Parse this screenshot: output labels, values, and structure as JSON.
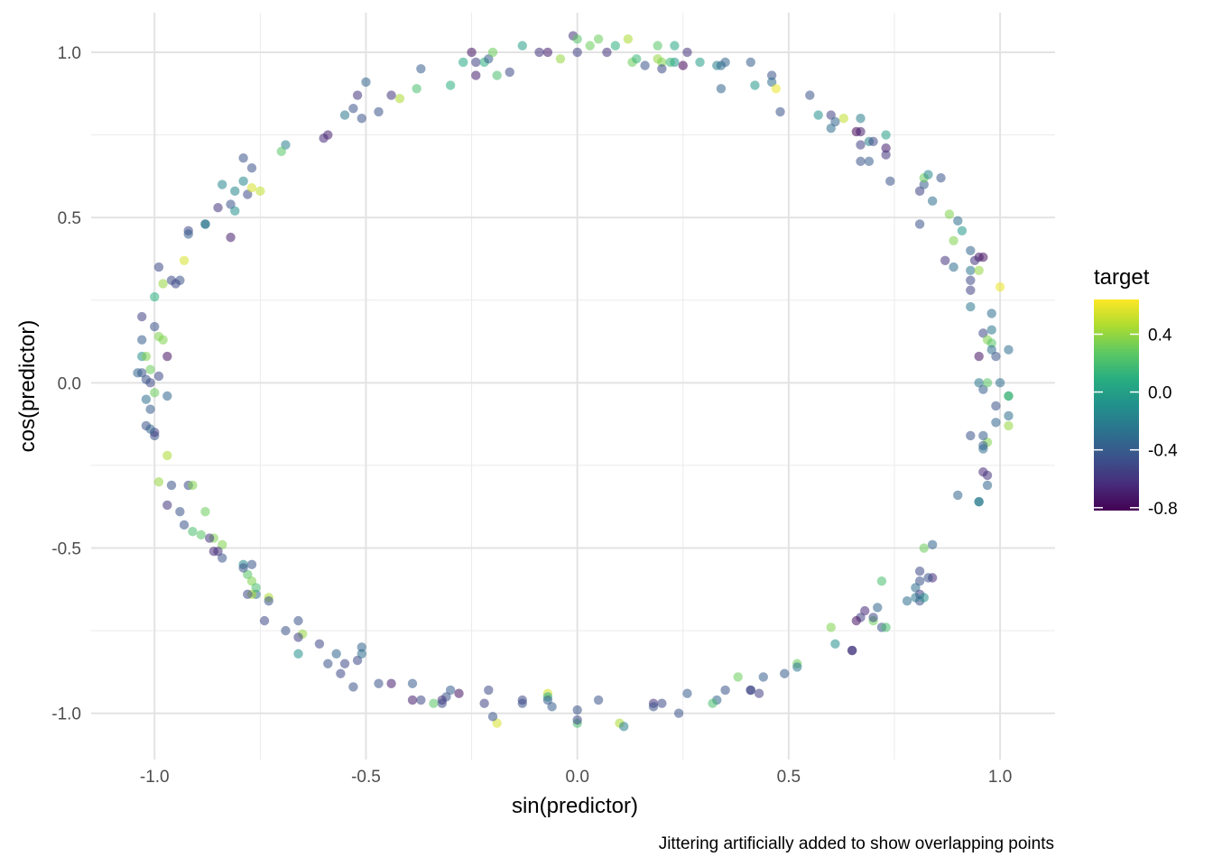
{
  "chart_data": {
    "type": "scatter",
    "xlabel": "sin(predictor)",
    "ylabel": "cos(predictor)",
    "caption": "Jittering artificially added to show overlapping points",
    "xlim": [
      -1.15,
      1.13
    ],
    "ylim": [
      -1.14,
      1.12
    ],
    "x_ticks": [
      -1.0,
      -0.5,
      0.0,
      0.5,
      1.0
    ],
    "y_ticks": [
      -1.0,
      -0.5,
      0.0,
      0.5,
      1.0
    ],
    "x_tick_labels": [
      "-1.0",
      "-0.5",
      "0.0",
      "0.5",
      "1.0"
    ],
    "y_tick_labels": [
      "-1.0",
      "-0.5",
      "0.0",
      "0.5",
      "1.0"
    ],
    "grid": true,
    "point_alpha": 0.55,
    "color_scale": "viridis",
    "legend": {
      "title": "target",
      "position": "right",
      "range": [
        -0.82,
        0.64
      ],
      "ticks": [
        0.4,
        0.0,
        -0.4,
        -0.8
      ],
      "tick_labels": [
        "0.4",
        "0.0",
        "-0.4",
        "-0.8"
      ]
    },
    "points": [
      [
        -0.25,
        1.0,
        -0.75
      ],
      [
        -0.24,
        0.97,
        -0.55
      ],
      [
        -0.22,
        0.97,
        0.1
      ],
      [
        -0.21,
        0.98,
        -0.4
      ],
      [
        -0.2,
        1.0,
        0.3
      ],
      [
        -0.19,
        0.93,
        0.2
      ],
      [
        -0.16,
        0.94,
        -0.5
      ],
      [
        -0.24,
        0.93,
        -0.7
      ],
      [
        -0.27,
        0.97,
        0.05
      ],
      [
        -0.3,
        0.9,
        0.1
      ],
      [
        -0.38,
        0.89,
        0.2
      ],
      [
        -0.42,
        0.86,
        0.45
      ],
      [
        -0.44,
        0.87,
        -0.6
      ],
      [
        -0.47,
        0.82,
        -0.45
      ],
      [
        -0.5,
        0.91,
        -0.35
      ],
      [
        -0.51,
        0.8,
        -0.45
      ],
      [
        -0.52,
        0.87,
        -0.6
      ],
      [
        -0.53,
        0.83,
        -0.45
      ],
      [
        -0.55,
        0.81,
        -0.25
      ],
      [
        -0.59,
        0.75,
        -0.7
      ],
      [
        -0.6,
        0.74,
        -0.65
      ],
      [
        -0.69,
        0.72,
        -0.2
      ],
      [
        -0.7,
        0.7,
        0.25
      ],
      [
        -0.37,
        0.95,
        -0.4
      ],
      [
        -0.13,
        1.02,
        0.0
      ],
      [
        -0.09,
        1.0,
        -0.6
      ],
      [
        -0.07,
        1.0,
        -0.7
      ],
      [
        -0.04,
        0.98,
        0.4
      ],
      [
        -0.01,
        1.05,
        -0.6
      ],
      [
        0.0,
        1.04,
        0.25
      ],
      [
        0.0,
        1.0,
        -0.55
      ],
      [
        0.03,
        1.02,
        0.3
      ],
      [
        0.05,
        1.04,
        0.3
      ],
      [
        0.07,
        1.0,
        -0.6
      ],
      [
        0.09,
        1.02,
        0.1
      ],
      [
        0.12,
        1.04,
        0.45
      ],
      [
        0.13,
        0.97,
        0.3
      ],
      [
        0.14,
        0.98,
        0.15
      ],
      [
        0.16,
        0.96,
        -0.45
      ],
      [
        0.19,
        0.98,
        0.4
      ],
      [
        0.19,
        1.02,
        0.25
      ],
      [
        0.2,
        0.97,
        0.35
      ],
      [
        0.2,
        0.95,
        -0.5
      ],
      [
        0.23,
        1.02,
        0.05
      ],
      [
        0.23,
        0.97,
        -0.05
      ],
      [
        0.22,
        0.97,
        0.15
      ],
      [
        0.25,
        0.96,
        -0.8
      ],
      [
        0.26,
        1.0,
        -0.6
      ],
      [
        0.29,
        0.97,
        0.0
      ],
      [
        0.33,
        0.96,
        -0.2
      ],
      [
        0.34,
        0.96,
        -0.3
      ],
      [
        0.34,
        0.89,
        -0.35
      ],
      [
        0.35,
        0.97,
        -0.35
      ],
      [
        0.41,
        0.97,
        -0.4
      ],
      [
        0.42,
        0.9,
        -0.05
      ],
      [
        0.46,
        0.93,
        -0.45
      ],
      [
        0.46,
        0.91,
        -0.3
      ],
      [
        0.47,
        0.89,
        0.6
      ],
      [
        0.48,
        0.82,
        -0.45
      ],
      [
        0.55,
        0.87,
        -0.45
      ],
      [
        0.57,
        0.81,
        -0.1
      ],
      [
        0.6,
        0.81,
        -0.55
      ],
      [
        0.6,
        0.77,
        -0.3
      ],
      [
        0.61,
        0.79,
        -0.35
      ],
      [
        0.63,
        0.8,
        0.5
      ],
      [
        0.66,
        0.76,
        -0.8
      ],
      [
        0.67,
        0.8,
        -0.2
      ],
      [
        0.67,
        0.76,
        -0.7
      ],
      [
        0.67,
        0.72,
        -0.55
      ],
      [
        0.67,
        0.67,
        -0.45
      ],
      [
        0.69,
        0.73,
        -0.2
      ],
      [
        0.69,
        0.67,
        -0.4
      ],
      [
        0.7,
        0.73,
        -0.5
      ],
      [
        0.73,
        0.75,
        0.0
      ],
      [
        0.73,
        0.71,
        -0.7
      ],
      [
        0.73,
        0.69,
        -0.6
      ],
      [
        0.74,
        0.61,
        -0.45
      ],
      [
        0.81,
        0.58,
        -0.55
      ],
      [
        0.82,
        0.6,
        -0.4
      ],
      [
        0.82,
        0.62,
        0.3
      ],
      [
        0.83,
        0.63,
        -0.15
      ],
      [
        0.84,
        0.55,
        -0.3
      ],
      [
        0.81,
        0.48,
        -0.45
      ],
      [
        0.86,
        0.62,
        -0.45
      ],
      [
        0.88,
        0.51,
        0.35
      ],
      [
        0.89,
        0.43,
        0.35
      ],
      [
        0.9,
        0.49,
        -0.3
      ],
      [
        0.91,
        0.46,
        -0.05
      ],
      [
        0.87,
        0.37,
        -0.6
      ],
      [
        0.89,
        0.35,
        -0.3
      ],
      [
        0.93,
        0.4,
        -0.35
      ],
      [
        0.93,
        0.34,
        -0.25
      ],
      [
        0.94,
        0.37,
        -0.6
      ],
      [
        0.95,
        0.38,
        -0.7
      ],
      [
        0.95,
        0.34,
        0.4
      ],
      [
        0.96,
        0.38,
        -0.75
      ],
      [
        0.93,
        0.31,
        -0.5
      ],
      [
        0.93,
        0.28,
        -0.55
      ],
      [
        0.93,
        0.23,
        -0.25
      ],
      [
        1.0,
        0.29,
        0.6
      ],
      [
        0.96,
        0.15,
        -0.5
      ],
      [
        0.98,
        0.21,
        -0.3
      ],
      [
        0.98,
        0.16,
        -0.25
      ],
      [
        0.97,
        0.13,
        0.35
      ],
      [
        0.98,
        0.12,
        0.25
      ],
      [
        0.98,
        0.1,
        -0.3
      ],
      [
        0.99,
        0.08,
        -0.45
      ],
      [
        1.02,
        0.1,
        -0.3
      ],
      [
        0.95,
        0.08,
        -0.75
      ],
      [
        0.95,
        0.0,
        -0.25
      ],
      [
        0.96,
        -0.02,
        -0.4
      ],
      [
        0.97,
        0.0,
        0.25
      ],
      [
        1.02,
        -0.04,
        -0.05
      ],
      [
        1.02,
        -0.04,
        0.2
      ],
      [
        0.99,
        -0.07,
        -0.45
      ],
      [
        1.0,
        0.0,
        -0.3
      ],
      [
        1.02,
        -0.1,
        -0.3
      ],
      [
        1.02,
        -0.13,
        0.4
      ],
      [
        0.99,
        -0.12,
        -0.35
      ],
      [
        0.97,
        -0.18,
        0.35
      ],
      [
        0.96,
        -0.19,
        -0.4
      ],
      [
        0.96,
        -0.2,
        -0.3
      ],
      [
        0.96,
        -0.16,
        -0.4
      ],
      [
        0.93,
        -0.16,
        -0.45
      ],
      [
        0.96,
        -0.27,
        -0.65
      ],
      [
        0.97,
        -0.28,
        -0.6
      ],
      [
        0.97,
        -0.31,
        -0.35
      ],
      [
        0.95,
        -0.36,
        -0.15
      ],
      [
        0.95,
        -0.36,
        -0.25
      ],
      [
        0.9,
        -0.34,
        -0.35
      ],
      [
        0.82,
        -0.5,
        0.3
      ],
      [
        0.84,
        -0.49,
        -0.35
      ],
      [
        0.84,
        -0.59,
        -0.65
      ],
      [
        0.83,
        -0.59,
        -0.45
      ],
      [
        0.81,
        -0.57,
        -0.5
      ],
      [
        0.81,
        -0.6,
        -0.45
      ],
      [
        0.8,
        -0.62,
        -0.3
      ],
      [
        0.81,
        -0.66,
        -0.45
      ],
      [
        0.81,
        -0.64,
        -0.55
      ],
      [
        0.82,
        -0.65,
        -0.1
      ],
      [
        0.8,
        -0.65,
        -0.25
      ],
      [
        0.78,
        -0.66,
        -0.3
      ],
      [
        0.72,
        -0.6,
        0.2
      ],
      [
        0.71,
        -0.68,
        -0.35
      ],
      [
        0.7,
        -0.72,
        0.3
      ],
      [
        0.72,
        -0.74,
        -0.45
      ],
      [
        0.73,
        -0.74,
        0.2
      ],
      [
        0.7,
        -0.71,
        -0.5
      ],
      [
        0.68,
        -0.69,
        -0.65
      ],
      [
        0.67,
        -0.71,
        -0.55
      ],
      [
        0.66,
        -0.72,
        -0.75
      ],
      [
        0.65,
        -0.81,
        -0.7
      ],
      [
        0.65,
        -0.81,
        -0.55
      ],
      [
        0.6,
        -0.74,
        0.35
      ],
      [
        0.61,
        -0.79,
        -0.1
      ],
      [
        0.52,
        -0.85,
        0.3
      ],
      [
        0.52,
        -0.86,
        -0.25
      ],
      [
        0.49,
        -0.88,
        -0.4
      ],
      [
        0.44,
        -0.89,
        -0.4
      ],
      [
        0.41,
        -0.93,
        -0.45
      ],
      [
        0.41,
        -0.93,
        -0.55
      ],
      [
        0.43,
        -0.94,
        -0.55
      ],
      [
        0.38,
        -0.89,
        0.3
      ],
      [
        0.35,
        -0.93,
        -0.45
      ],
      [
        0.33,
        -0.96,
        -0.35
      ],
      [
        0.32,
        -0.97,
        0.2
      ],
      [
        0.26,
        -0.94,
        -0.4
      ],
      [
        0.24,
        -1.0,
        -0.45
      ],
      [
        0.2,
        -0.97,
        -0.5
      ],
      [
        0.18,
        -0.97,
        -0.6
      ],
      [
        0.18,
        -0.98,
        -0.45
      ],
      [
        0.1,
        -1.03,
        0.45
      ],
      [
        0.11,
        -1.04,
        -0.2
      ],
      [
        0.05,
        -0.96,
        -0.45
      ],
      [
        0.0,
        -1.03,
        0.2
      ],
      [
        0.0,
        -1.02,
        -0.5
      ],
      [
        0.0,
        -0.99,
        -0.45
      ],
      [
        -0.07,
        -0.94,
        0.55
      ],
      [
        -0.07,
        -0.95,
        0.1
      ],
      [
        -0.07,
        -0.96,
        -0.4
      ],
      [
        -0.06,
        -0.98,
        -0.4
      ],
      [
        -0.13,
        -0.97,
        -0.45
      ],
      [
        -0.13,
        -0.96,
        -0.5
      ],
      [
        -0.19,
        -1.03,
        0.55
      ],
      [
        -0.2,
        -1.01,
        -0.45
      ],
      [
        -0.21,
        -0.93,
        -0.5
      ],
      [
        -0.22,
        -0.97,
        -0.55
      ],
      [
        -0.28,
        -0.94,
        -0.75
      ],
      [
        -0.3,
        -0.93,
        -0.4
      ],
      [
        -0.31,
        -0.95,
        -0.45
      ],
      [
        -0.32,
        -0.96,
        -0.6
      ],
      [
        -0.32,
        -0.97,
        -0.5
      ],
      [
        -0.34,
        -0.97,
        0.25
      ],
      [
        -0.37,
        -0.96,
        -0.5
      ],
      [
        -0.39,
        -0.91,
        -0.4
      ],
      [
        -0.39,
        -0.96,
        -0.7
      ],
      [
        -0.44,
        -0.91,
        -0.7
      ],
      [
        -0.47,
        -0.91,
        -0.45
      ],
      [
        -0.52,
        -0.84,
        -0.5
      ],
      [
        -0.51,
        -0.82,
        -0.3
      ],
      [
        -0.51,
        -0.8,
        -0.35
      ],
      [
        -0.53,
        -0.92,
        -0.45
      ],
      [
        -0.55,
        -0.85,
        -0.5
      ],
      [
        -0.56,
        -0.88,
        -0.5
      ],
      [
        -0.57,
        -0.82,
        -0.35
      ],
      [
        -0.59,
        -0.85,
        -0.45
      ],
      [
        -0.61,
        -0.79,
        -0.5
      ],
      [
        -0.65,
        -0.76,
        0.4
      ],
      [
        -0.66,
        -0.77,
        -0.55
      ],
      [
        -0.66,
        -0.72,
        -0.45
      ],
      [
        -0.66,
        -0.82,
        -0.1
      ],
      [
        -0.69,
        -0.75,
        -0.45
      ],
      [
        -0.74,
        -0.72,
        -0.5
      ],
      [
        -0.73,
        -0.65,
        0.45
      ],
      [
        -0.73,
        -0.66,
        -0.45
      ],
      [
        -0.76,
        -0.64,
        -0.3
      ],
      [
        -0.77,
        -0.64,
        0.45
      ],
      [
        -0.77,
        -0.6,
        0.35
      ],
      [
        -0.76,
        -0.62,
        0.2
      ],
      [
        -0.78,
        -0.64,
        -0.5
      ],
      [
        -0.78,
        -0.58,
        0.25
      ],
      [
        -0.77,
        -0.55,
        -0.45
      ],
      [
        -0.79,
        -0.55,
        -0.15
      ],
      [
        -0.79,
        -0.56,
        -0.45
      ],
      [
        -0.84,
        -0.53,
        -0.45
      ],
      [
        -0.84,
        -0.49,
        0.35
      ],
      [
        -0.85,
        -0.51,
        -0.6
      ],
      [
        -0.86,
        -0.51,
        -0.65
      ],
      [
        -0.86,
        -0.47,
        0.35
      ],
      [
        -0.87,
        -0.47,
        -0.6
      ],
      [
        -0.88,
        -0.39,
        0.3
      ],
      [
        -0.89,
        -0.46,
        0.25
      ],
      [
        -0.91,
        -0.45,
        0.2
      ],
      [
        -0.93,
        -0.43,
        -0.45
      ],
      [
        -0.94,
        -0.39,
        -0.45
      ],
      [
        -0.97,
        -0.37,
        -0.6
      ],
      [
        -0.96,
        -0.31,
        -0.45
      ],
      [
        -0.92,
        -0.31,
        -0.5
      ],
      [
        -0.91,
        -0.31,
        0.35
      ],
      [
        -0.99,
        -0.3,
        0.4
      ],
      [
        -0.97,
        -0.22,
        0.45
      ],
      [
        -0.97,
        -0.04,
        -0.35
      ],
      [
        -1.0,
        -0.16,
        -0.45
      ],
      [
        -1.0,
        -0.15,
        -0.55
      ],
      [
        -1.01,
        -0.14,
        -0.35
      ],
      [
        -1.02,
        -0.13,
        -0.45
      ],
      [
        -1.02,
        -0.05,
        -0.3
      ],
      [
        -1.0,
        -0.03,
        0.3
      ],
      [
        -1.01,
        -0.08,
        -0.4
      ],
      [
        -1.01,
        0.0,
        -0.5
      ],
      [
        -1.02,
        0.01,
        -0.45
      ],
      [
        -1.03,
        0.03,
        -0.45
      ],
      [
        -1.04,
        0.03,
        -0.35
      ],
      [
        -1.03,
        0.08,
        -0.1
      ],
      [
        -1.02,
        0.08,
        0.35
      ],
      [
        -1.01,
        0.04,
        0.3
      ],
      [
        -0.99,
        0.02,
        -0.5
      ],
      [
        -0.97,
        0.08,
        -0.75
      ],
      [
        -0.98,
        0.13,
        0.35
      ],
      [
        -0.99,
        0.14,
        0.35
      ],
      [
        -1.03,
        0.13,
        -0.4
      ],
      [
        -1.03,
        0.2,
        -0.55
      ],
      [
        -1.0,
        0.17,
        -0.45
      ],
      [
        -1.0,
        0.26,
        0.1
      ],
      [
        -0.98,
        0.3,
        0.4
      ],
      [
        -0.99,
        0.35,
        -0.5
      ],
      [
        -0.96,
        0.31,
        -0.5
      ],
      [
        -0.94,
        0.31,
        -0.45
      ],
      [
        -0.95,
        0.3,
        -0.5
      ],
      [
        -0.93,
        0.37,
        0.55
      ],
      [
        -0.92,
        0.46,
        -0.5
      ],
      [
        -0.92,
        0.45,
        -0.4
      ],
      [
        -0.88,
        0.48,
        -0.45
      ],
      [
        -0.88,
        0.48,
        -0.15
      ],
      [
        -0.85,
        0.53,
        -0.6
      ],
      [
        -0.82,
        0.44,
        -0.7
      ],
      [
        -0.84,
        0.6,
        -0.15
      ],
      [
        -0.82,
        0.54,
        -0.45
      ],
      [
        -0.81,
        0.52,
        -0.1
      ],
      [
        -0.81,
        0.58,
        -0.15
      ],
      [
        -0.79,
        0.61,
        -0.15
      ],
      [
        -0.79,
        0.68,
        -0.45
      ],
      [
        -0.78,
        0.57,
        -0.5
      ],
      [
        -0.77,
        0.59,
        0.55
      ],
      [
        -0.77,
        0.65,
        -0.45
      ],
      [
        -0.75,
        0.58,
        0.5
      ]
    ]
  }
}
